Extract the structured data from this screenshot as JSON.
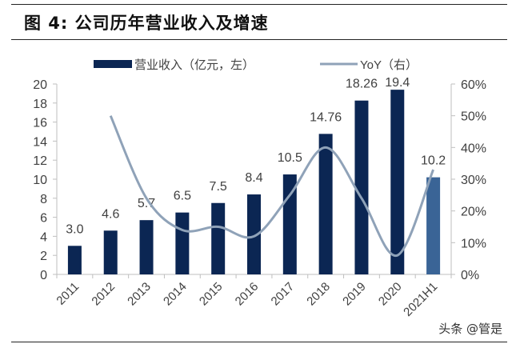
{
  "title": "图 4:  公司历年营业收入及增速",
  "watermark": "头条 @管是",
  "colors": {
    "bar": "#0b2653",
    "bar_highlight": "#3a6496",
    "line": "#8fa2b8",
    "axis": "#bfbfbf",
    "text": "#404040"
  },
  "chart_data": {
    "type": "bar+line",
    "categories": [
      "2011",
      "2012",
      "2013",
      "2014",
      "2015",
      "2016",
      "2017",
      "2018",
      "2019",
      "2020",
      "2021H1"
    ],
    "series": [
      {
        "name": "营业收入（亿元，左）",
        "type": "bar",
        "axis": "left",
        "values": [
          3.0,
          4.6,
          5.7,
          6.5,
          7.5,
          8.4,
          10.5,
          14.76,
          18.26,
          19.4,
          10.2
        ],
        "labels": [
          "3.0",
          "4.6",
          "5.7",
          "6.5",
          "7.5",
          "8.4",
          "10.5",
          "14.76",
          "18.26",
          "19.4",
          "10.2"
        ]
      },
      {
        "name": "YoY（右）",
        "type": "line",
        "axis": "right",
        "values": [
          null,
          50,
          24,
          14,
          15,
          12,
          25,
          40,
          24,
          6,
          33
        ]
      }
    ],
    "y_left": {
      "min": 0,
      "max": 20,
      "ticks": [
        "0",
        "2",
        "4",
        "6",
        "8",
        "10",
        "12",
        "14",
        "16",
        "18",
        "20"
      ]
    },
    "y_right": {
      "min": 0,
      "max": 60,
      "unit": "%",
      "ticks": [
        "0%",
        "10%",
        "20%",
        "30%",
        "40%",
        "50%",
        "60%"
      ]
    },
    "legend": "top",
    "grid": false
  }
}
